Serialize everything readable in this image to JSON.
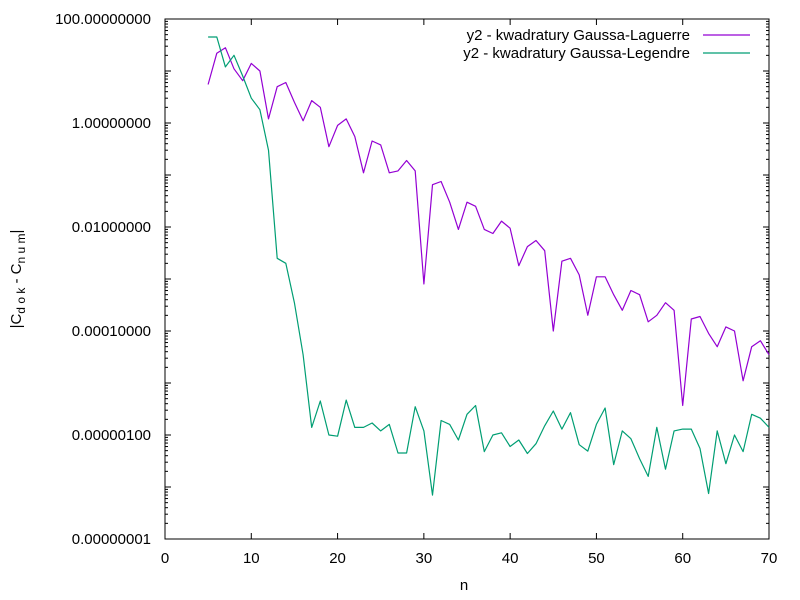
{
  "chart_data": {
    "type": "line",
    "title": "",
    "xlabel": "n",
    "ylabel": {
      "prefix": "|C",
      "sub1": "d o k",
      "mid": " - C",
      "sub2": "n u m",
      "suffix": "|"
    },
    "xlim": [
      0,
      70
    ],
    "ylim": [
      1e-08,
      100
    ],
    "yscale": "log",
    "grid": false,
    "legend_position": "top-right",
    "x_ticks": [
      0,
      10,
      20,
      30,
      40,
      50,
      60,
      70
    ],
    "y_ticks": [
      {
        "value": 100,
        "label": "100.00000000"
      },
      {
        "value": 1,
        "label": "1.00000000"
      },
      {
        "value": 0.01,
        "label": "0.01000000"
      },
      {
        "value": 0.0001,
        "label": "0.00010000"
      },
      {
        "value": 1e-06,
        "label": "0.00000100"
      },
      {
        "value": 1e-08,
        "label": "0.00000001"
      }
    ],
    "series": [
      {
        "name": "y2 - kwadratury Gaussa-Laguerre",
        "color": "#9400d3",
        "x": [
          5,
          6,
          7,
          8,
          9,
          10,
          11,
          12,
          13,
          14,
          15,
          16,
          17,
          18,
          19,
          20,
          21,
          22,
          23,
          24,
          25,
          26,
          27,
          28,
          29,
          30,
          31,
          32,
          33,
          34,
          35,
          36,
          37,
          38,
          39,
          40,
          41,
          42,
          43,
          44,
          45,
          46,
          47,
          48,
          49,
          50,
          51,
          52,
          53,
          54,
          55,
          56,
          57,
          58,
          59,
          60,
          61,
          62,
          63,
          64,
          65,
          66,
          67,
          68,
          69,
          70
        ],
        "y": [
          5.5,
          22,
          28,
          11,
          6.5,
          14,
          10,
          1.2,
          5,
          6,
          2.5,
          1.1,
          2.7,
          2.0,
          0.35,
          0.9,
          1.2,
          0.55,
          0.11,
          0.45,
          0.38,
          0.11,
          0.12,
          0.19,
          0.12,
          0.0008,
          0.065,
          0.075,
          0.03,
          0.009,
          0.03,
          0.025,
          0.009,
          0.0075,
          0.013,
          0.0095,
          0.0018,
          0.0042,
          0.0055,
          0.0035,
          0.0001,
          0.0022,
          0.0025,
          0.0012,
          0.0002,
          0.0011,
          0.0011,
          0.0005,
          0.00025,
          0.0006,
          0.0005,
          0.00015,
          0.0002,
          0.00035,
          0.00025,
          3.7e-06,
          0.00017,
          0.00019,
          9e-05,
          5e-05,
          0.00012,
          0.0001,
          1.1e-05,
          5e-05,
          6.5e-05,
          3.5e-05
        ]
      },
      {
        "name": "y2 - kwadratury Gaussa-Legendre",
        "color": "#009e73",
        "x": [
          5,
          6,
          7,
          8,
          9,
          10,
          11,
          12,
          13,
          14,
          15,
          16,
          17,
          18,
          19,
          20,
          21,
          22,
          23,
          24,
          25,
          26,
          27,
          28,
          29,
          30,
          31,
          32,
          33,
          34,
          35,
          36,
          37,
          38,
          39,
          40,
          41,
          42,
          43,
          44,
          45,
          46,
          47,
          48,
          49,
          50,
          51,
          52,
          53,
          54,
          55,
          56,
          57,
          58,
          59,
          60,
          61,
          62,
          63,
          64,
          65,
          66,
          67,
          68,
          69,
          70
        ],
        "y": [
          45,
          45,
          12,
          20,
          8,
          3,
          1.8,
          0.3,
          0.0025,
          0.002,
          0.00035,
          3.5e-05,
          1.4e-06,
          4.5e-06,
          1e-06,
          9.5e-07,
          4.7e-06,
          1.4e-06,
          1.4e-06,
          1.7e-06,
          1.2e-06,
          1.6e-06,
          4.5e-07,
          4.5e-07,
          3.5e-06,
          1.2e-06,
          7e-08,
          1.9e-06,
          1.6e-06,
          8e-07,
          2.5e-06,
          3.7e-06,
          4.8e-07,
          1e-06,
          1.1e-06,
          6e-07,
          8e-07,
          4.4e-07,
          6.8e-07,
          1.5e-06,
          2.9e-06,
          1.3e-06,
          2.7e-06,
          6.5e-07,
          4.9e-07,
          1.6e-06,
          3.3e-06,
          2.7e-07,
          1.2e-06,
          8.5e-07,
          3.5e-07,
          1.6e-07,
          1.4e-06,
          2.2e-07,
          1.2e-06,
          1.3e-06,
          1.3e-06,
          5.5e-07,
          7.5e-08,
          1.2e-06,
          2.8e-07,
          1e-06,
          4.8e-07,
          2.5e-06,
          2.1e-06,
          1.4e-06
        ]
      }
    ]
  }
}
